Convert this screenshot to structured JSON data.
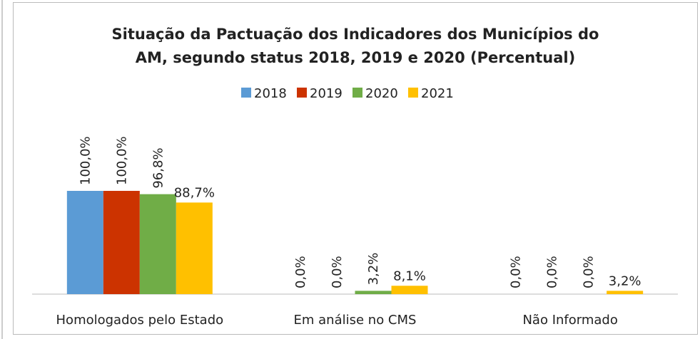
{
  "chart_data": {
    "type": "bar",
    "title": [
      "Situação da Pactuação dos Indicadores dos Municípios do",
      "AM, segundo status 2018, 2019 e 2020 (Percentual)"
    ],
    "categories": [
      "Homologados pelo Estado",
      "Em análise no CMS",
      "Não Informado"
    ],
    "series": [
      {
        "name": "2018",
        "color": "#5b9bd5",
        "values": [
          100,
          0,
          0
        ],
        "value_labels": [
          "100,0%",
          "0,0%",
          "0,0%"
        ]
      },
      {
        "name": "2019",
        "color": "#cc3300",
        "values": [
          100,
          0,
          0
        ],
        "value_labels": [
          "100,0%",
          "0,0%",
          "0,0%"
        ]
      },
      {
        "name": "2020",
        "color": "#70ad47",
        "values": [
          96.8,
          3.2,
          0
        ],
        "value_labels": [
          "96,8%",
          "3,2%",
          "0,0%"
        ]
      },
      {
        "name": "2021",
        "color": "#ffc000",
        "values": [
          88.7,
          8.1,
          3.2
        ],
        "value_labels": [
          "88,7%",
          "8,1%",
          "3,2%"
        ]
      }
    ],
    "legend": "top"
  }
}
